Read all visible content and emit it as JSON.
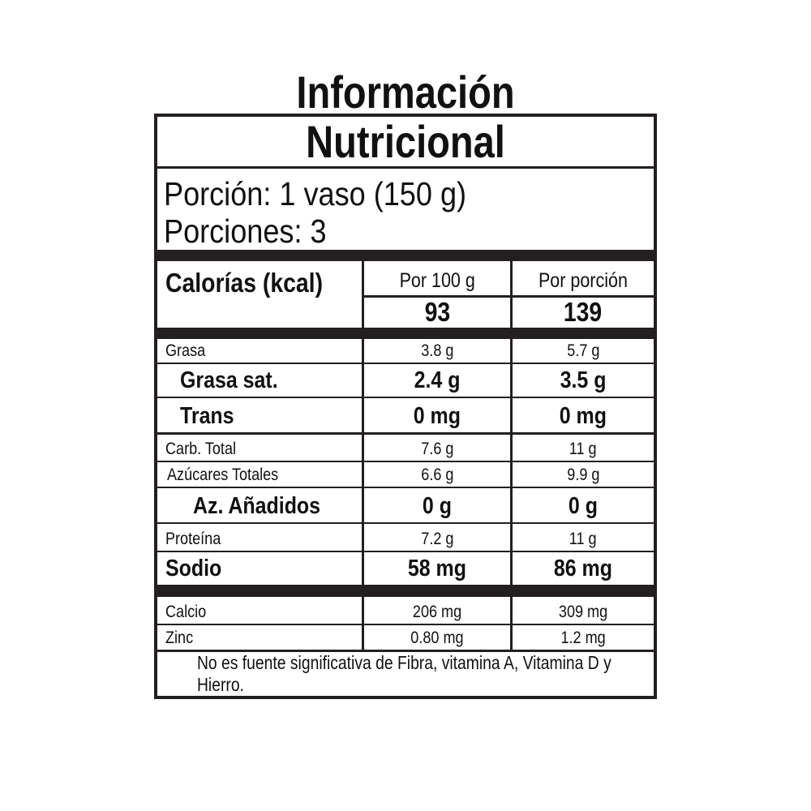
{
  "title": "Información Nutricional",
  "portion": {
    "serving": "Porción: 1 vaso (150 g)",
    "servings": "Porciones: 3"
  },
  "calories": {
    "label": "Calorías (kcal)",
    "col1": "Por 100 g",
    "col2": "Por porción",
    "val1": "93",
    "val2": "139"
  },
  "nutrients": [
    {
      "label": "Grasa",
      "per100": "3.8 g",
      "perServing": "5.7 g"
    },
    {
      "label": "Grasa sat.",
      "per100": "2.4 g",
      "perServing": "3.5 g"
    },
    {
      "label": "Trans",
      "per100": "0 mg",
      "perServing": "0 mg"
    },
    {
      "label": "Carb. Total",
      "per100": "7.6 g",
      "perServing": "11 g"
    },
    {
      "label": "Azúcares Totales",
      "per100": "6.6 g",
      "perServing": "9.9 g"
    },
    {
      "label": "Az. Añadidos",
      "per100": "0 g",
      "perServing": "0 g"
    },
    {
      "label": "Proteína",
      "per100": "7.2 g",
      "perServing": "11 g"
    },
    {
      "label": "Sodio",
      "per100": "58 mg",
      "perServing": "86 mg"
    }
  ],
  "minerals": [
    {
      "label": "Calcio",
      "per100": "206 mg",
      "perServing": "309 mg"
    },
    {
      "label": "Zinc",
      "per100": "0.80 mg",
      "perServing": "1.2 mg"
    }
  ],
  "footer": "No es fuente significativa de Fibra, vitamina A, Vitamina D y Hierro."
}
